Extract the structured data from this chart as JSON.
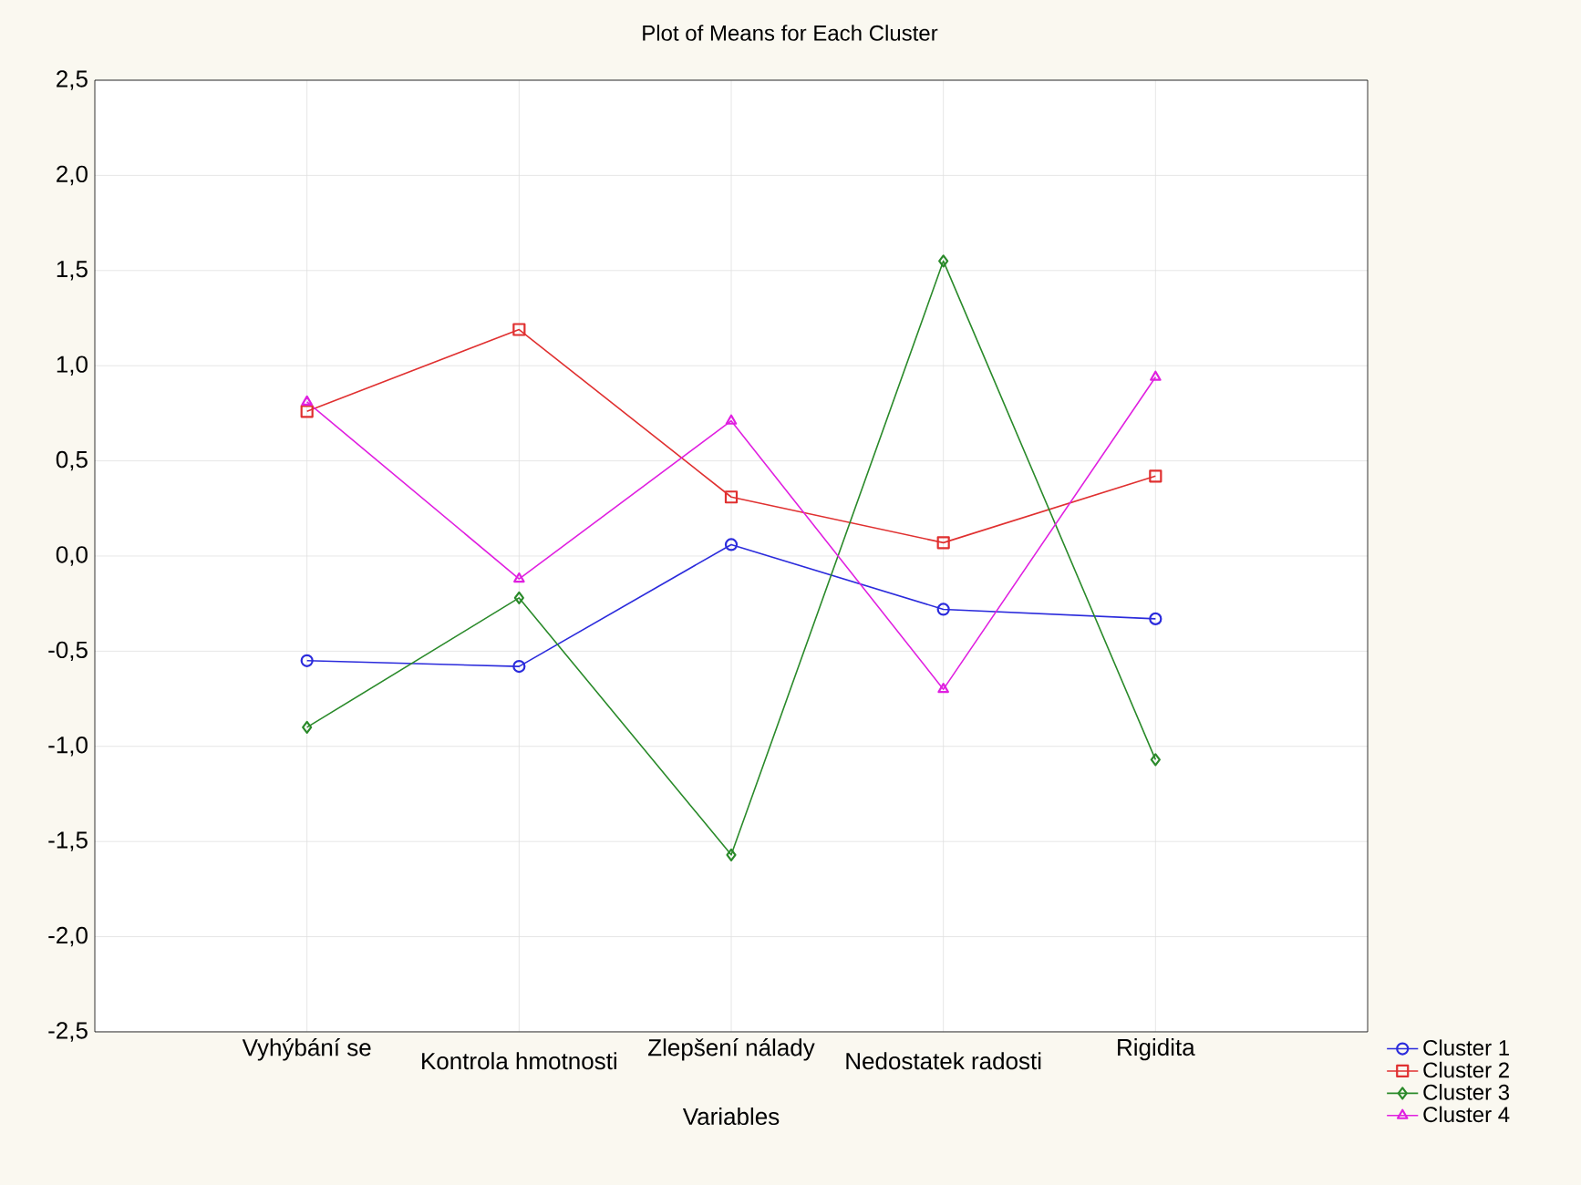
{
  "chart_data": {
    "type": "line",
    "title": "Plot of Means for Each Cluster",
    "xlabel": "Variables",
    "categories": [
      "Vyhýbání se",
      "Kontrola hmotnosti",
      "Zlepšení nálady",
      "Nedostatek radosti",
      "Rigidita"
    ],
    "series": [
      {
        "name": "Cluster  1",
        "color": "#2b2bdc",
        "marker": "circle",
        "values": [
          -0.55,
          -0.58,
          0.06,
          -0.28,
          -0.33
        ]
      },
      {
        "name": "Cluster  2",
        "color": "#e03030",
        "marker": "square",
        "values": [
          0.76,
          1.19,
          0.31,
          0.07,
          0.42
        ]
      },
      {
        "name": "Cluster  3",
        "color": "#2a8a2a",
        "marker": "diamond",
        "values": [
          -0.9,
          -0.22,
          -1.57,
          1.55,
          -1.07
        ]
      },
      {
        "name": "Cluster  4",
        "color": "#e020e0",
        "marker": "triangle",
        "values": [
          0.81,
          -0.12,
          0.71,
          -0.7,
          0.94
        ]
      }
    ],
    "ylim": [
      -2.5,
      2.5
    ],
    "yticks": [
      {
        "value": -2.5,
        "label": "-2,5"
      },
      {
        "value": -2.0,
        "label": "-2,0"
      },
      {
        "value": -1.5,
        "label": "-1,5"
      },
      {
        "value": -1.0,
        "label": "-1,0"
      },
      {
        "value": -0.5,
        "label": "-0,5"
      },
      {
        "value": 0.0,
        "label": "0,0"
      },
      {
        "value": 0.5,
        "label": "0,5"
      },
      {
        "value": 1.0,
        "label": "1,0"
      },
      {
        "value": 1.5,
        "label": "1,5"
      },
      {
        "value": 2.0,
        "label": "2,0"
      },
      {
        "value": 2.5,
        "label": "2,5"
      }
    ],
    "grid": true,
    "legend": "bottom right",
    "line_style": "solid"
  }
}
